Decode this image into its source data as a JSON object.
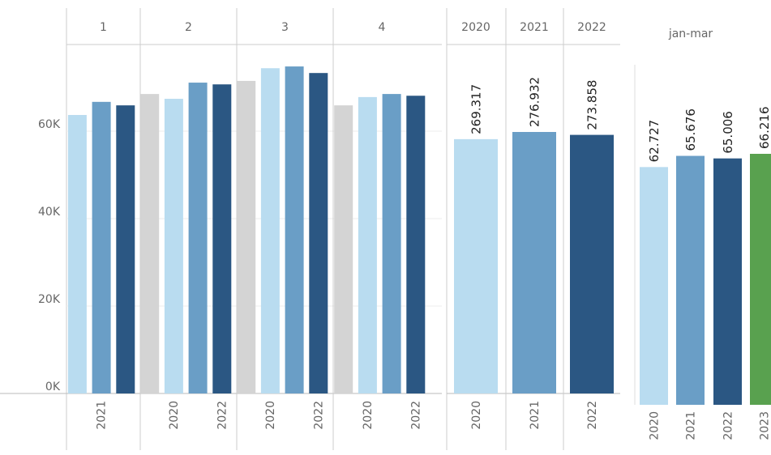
{
  "chart_data": [
    {
      "type": "grouped-bar",
      "ylim": [
        0,
        80000
      ],
      "yticks": [
        {
          "value": 0,
          "label": "0K"
        },
        {
          "value": 20000,
          "label": "20K"
        },
        {
          "value": 40000,
          "label": "40K"
        },
        {
          "value": 60000,
          "label": "60K"
        }
      ],
      "grid": true,
      "groups": [
        {
          "label": "1",
          "categories": [
            null,
            "2021",
            null
          ],
          "values": [
            63700,
            66700,
            65900
          ],
          "colors": [
            "#b9dcf0",
            "#6a9ec6",
            "#2b5783"
          ]
        },
        {
          "label": "2",
          "categories": [
            null,
            "2020",
            null,
            "2022"
          ],
          "values": [
            68500,
            67400,
            71100,
            70700
          ],
          "colors": [
            "#d4d4d4",
            "#b9dcf0",
            "#6a9ec6",
            "#2b5783"
          ]
        },
        {
          "label": "3",
          "categories": [
            null,
            "2020",
            null,
            "2022"
          ],
          "values": [
            71500,
            74400,
            74800,
            73300
          ],
          "colors": [
            "#d4d4d4",
            "#b9dcf0",
            "#6a9ec6",
            "#2b5783"
          ]
        },
        {
          "label": "4",
          "categories": [
            null,
            "2020",
            null,
            "2022"
          ],
          "values": [
            65900,
            67800,
            68500,
            68100
          ],
          "colors": [
            "#d4d4d4",
            "#b9dcf0",
            "#6a9ec6",
            "#2b5783"
          ]
        }
      ]
    },
    {
      "type": "labeled-bar",
      "header": [
        "2020",
        "2021",
        "2022"
      ],
      "categories": [
        "2020",
        "2021",
        "2022"
      ],
      "values": [
        269.317,
        276.932,
        273.858
      ],
      "colors": [
        "#b9dcf0",
        "#6a9ec6",
        "#2b5783"
      ]
    },
    {
      "type": "labeled-bar",
      "title": "jan-mar",
      "categories": [
        "2020",
        "2021",
        "2022",
        "2023"
      ],
      "values": [
        62.727,
        65.676,
        65.006,
        66.216
      ],
      "colors": [
        "#b9dcf0",
        "#6a9ec6",
        "#2b5783",
        "#59a14f"
      ]
    }
  ]
}
